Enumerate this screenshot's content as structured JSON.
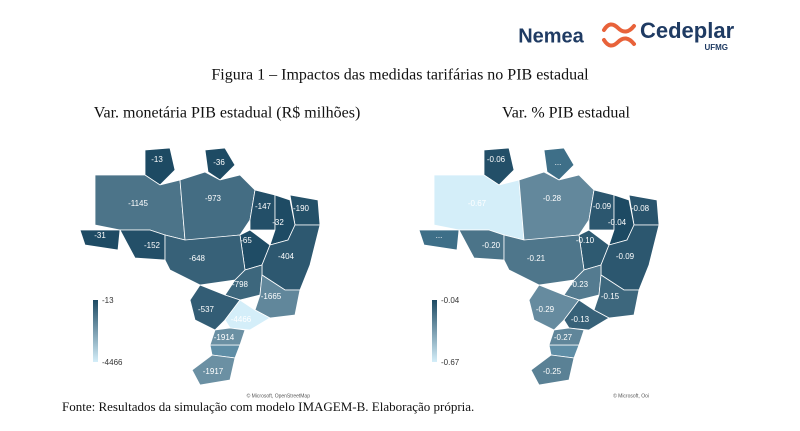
{
  "header": {
    "brand": "Nemea",
    "logo": "Cedeplar",
    "logo_sub": "UFMG"
  },
  "figure_title": "Figura 1 – Impactos das medidas tarifárias no PIB estadual",
  "maps": [
    {
      "title": "Var. monetária PIB estadual (R$ milhões)",
      "legend": {
        "max": -13,
        "min": -4466
      },
      "attribution": "© Microsoft, OpenStreetMap",
      "regions": [
        {
          "value": -13
        },
        {
          "value": -36
        },
        {
          "value": -1145
        },
        {
          "value": -973
        },
        {
          "value": -147
        },
        {
          "value": -190
        },
        {
          "value": -32
        },
        {
          "value": -31
        },
        {
          "value": -152
        },
        {
          "value": -65
        },
        {
          "value": -404
        },
        {
          "value": -648
        },
        {
          "value": -798
        },
        {
          "value": -1665
        },
        {
          "value": -537
        },
        {
          "value": -4466
        },
        {
          "value": -1914
        },
        {
          "value": -1917
        }
      ]
    },
    {
      "title": "Var. % PIB estadual",
      "legend": {
        "max": -0.04,
        "min": -0.67
      },
      "attribution": "© Microsoft, Ooi",
      "regions": [
        {
          "value": -0.06
        },
        {
          "label": "..."
        },
        {
          "value": -0.67
        },
        {
          "value": -0.28
        },
        {
          "value": -0.09
        },
        {
          "value": -0.08
        },
        {
          "value": -0.04
        },
        {
          "label": "..."
        },
        {
          "value": -0.2,
          "label": "-0.20"
        },
        {
          "value": -0.1,
          "label": "-0.10"
        },
        {
          "value": -0.09
        },
        {
          "value": -0.21
        },
        {
          "value": -0.23
        },
        {
          "value": -0.15
        },
        {
          "value": -0.29
        },
        {
          "value": -0.13
        },
        {
          "value": -0.27
        },
        {
          "value": -0.25
        }
      ]
    }
  ],
  "source": "Fonte: Resultados da simulação com modelo IMAGEM-B. Elaboração própria."
}
